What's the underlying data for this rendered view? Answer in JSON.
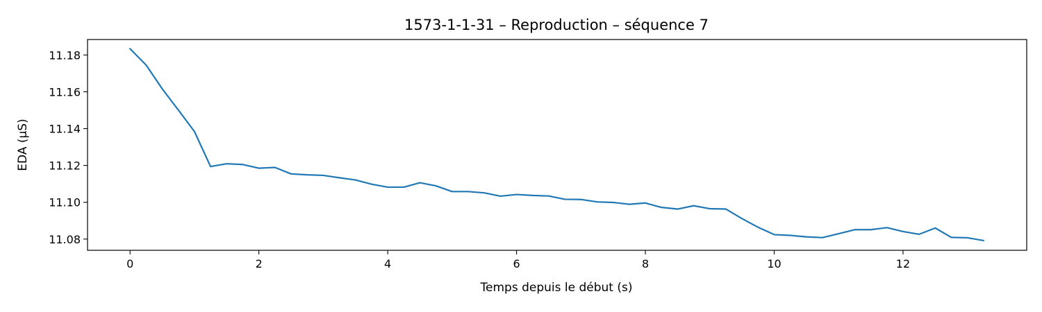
{
  "chart_data": {
    "type": "line",
    "title": "1573-1-1-31 – Reproduction – séquence 7",
    "xlabel": "Temps depuis le début (s)",
    "ylabel": "EDA (µS)",
    "xlim": [
      -0.66,
      13.92
    ],
    "ylim": [
      11.0739,
      11.1884
    ],
    "xticks": [
      0,
      2,
      4,
      6,
      8,
      10,
      12
    ],
    "xtick_labels": [
      "0",
      "2",
      "4",
      "6",
      "8",
      "10",
      "12"
    ],
    "yticks": [
      11.08,
      11.1,
      11.12,
      11.14,
      11.16,
      11.18
    ],
    "ytick_labels": [
      "11.08",
      "11.10",
      "11.12",
      "11.14",
      "11.16",
      "11.18"
    ],
    "grid": false,
    "color": "#1f77b4",
    "series": [
      {
        "x": [
          0,
          0.25,
          0.5,
          0.75,
          1.0,
          1.25,
          1.5,
          1.75,
          2.0,
          2.25,
          2.5,
          2.75,
          3.0,
          3.25,
          3.5,
          3.75,
          4.0,
          4.25,
          4.5,
          4.75,
          5.0,
          5.25,
          5.5,
          5.75,
          6.0,
          6.25,
          6.5,
          6.75,
          7.0,
          7.25,
          7.5,
          7.75,
          8.0,
          8.25,
          8.5,
          8.75,
          9.0,
          9.25,
          9.5,
          9.75,
          10.0,
          10.25,
          10.5,
          10.75,
          11.0,
          11.25,
          11.5,
          11.75,
          12.0,
          12.25,
          12.5,
          12.75,
          13.0,
          13.25
        ],
        "y": [
          11.1834,
          11.1745,
          11.1616,
          11.1501,
          11.1384,
          11.1194,
          11.1209,
          11.1205,
          11.1185,
          11.1189,
          11.1154,
          11.1149,
          11.1146,
          11.1133,
          11.1121,
          11.1098,
          11.1082,
          11.1082,
          11.1106,
          11.1089,
          11.1058,
          11.1058,
          11.1051,
          11.1033,
          11.1042,
          11.1037,
          11.1034,
          11.1016,
          11.1015,
          11.1002,
          11.0999,
          11.0989,
          11.0996,
          11.0972,
          11.0963,
          11.0981,
          11.0965,
          11.0963,
          11.0911,
          11.0864,
          11.0824,
          11.082,
          11.0812,
          11.0808,
          11.0829,
          11.0851,
          11.0851,
          11.0862,
          11.0841,
          11.0826,
          11.086,
          11.0809,
          11.0807,
          11.0792
        ]
      }
    ]
  }
}
